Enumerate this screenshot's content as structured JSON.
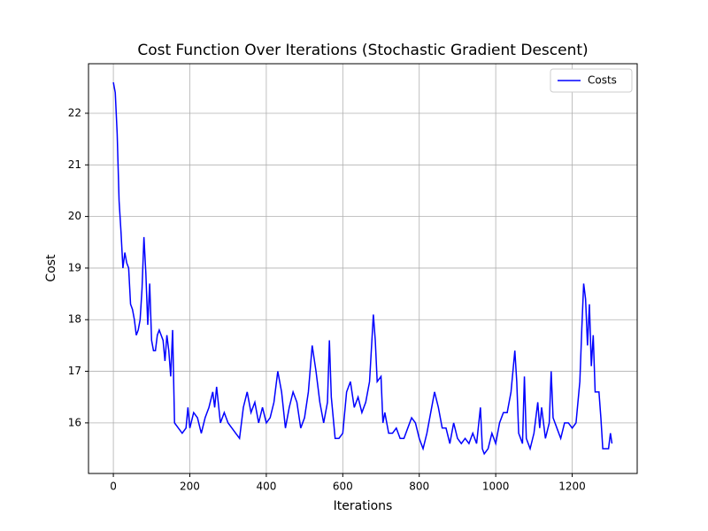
{
  "chart_data": {
    "type": "line",
    "title": "Cost Function Over Iterations (Stochastic Gradient Descent)",
    "xlabel": "Iterations",
    "ylabel": "Cost",
    "x": [
      0,
      5,
      10,
      15,
      20,
      25,
      30,
      35,
      40,
      45,
      50,
      55,
      60,
      65,
      70,
      75,
      80,
      85,
      90,
      95,
      100,
      105,
      110,
      115,
      120,
      125,
      130,
      135,
      140,
      145,
      150,
      155,
      160,
      170,
      180,
      190,
      195,
      200,
      210,
      220,
      230,
      240,
      250,
      260,
      265,
      270,
      280,
      290,
      300,
      310,
      320,
      330,
      340,
      350,
      360,
      370,
      380,
      390,
      400,
      410,
      420,
      430,
      440,
      450,
      460,
      470,
      480,
      490,
      500,
      510,
      520,
      530,
      540,
      550,
      560,
      565,
      570,
      580,
      590,
      600,
      610,
      620,
      630,
      640,
      650,
      660,
      670,
      680,
      685,
      690,
      700,
      705,
      710,
      720,
      730,
      740,
      750,
      760,
      770,
      780,
      790,
      800,
      810,
      820,
      830,
      840,
      850,
      860,
      870,
      880,
      890,
      900,
      910,
      920,
      930,
      940,
      950,
      960,
      965,
      970,
      980,
      990,
      1000,
      1010,
      1020,
      1030,
      1040,
      1050,
      1055,
      1060,
      1070,
      1075,
      1080,
      1090,
      1100,
      1110,
      1115,
      1120,
      1130,
      1140,
      1145,
      1150,
      1160,
      1170,
      1180,
      1190,
      1200,
      1210,
      1220,
      1225,
      1230,
      1235,
      1240,
      1245,
      1250,
      1255,
      1260,
      1270,
      1275,
      1280,
      1290,
      1295,
      1300,
      1304
    ],
    "series": [
      {
        "name": "Costs",
        "color": "#0000ff",
        "values": [
          22.6,
          22.4,
          21.6,
          20.3,
          19.7,
          19.0,
          19.3,
          19.1,
          19.0,
          18.3,
          18.2,
          18.0,
          17.7,
          17.8,
          18.0,
          18.6,
          19.6,
          18.9,
          17.9,
          18.7,
          17.6,
          17.4,
          17.4,
          17.7,
          17.8,
          17.7,
          17.6,
          17.2,
          17.7,
          17.4,
          16.9,
          17.8,
          16.0,
          15.9,
          15.8,
          15.9,
          16.3,
          15.9,
          16.2,
          16.1,
          15.8,
          16.1,
          16.3,
          16.6,
          16.3,
          16.7,
          16.0,
          16.2,
          16.0,
          15.9,
          15.8,
          15.7,
          16.3,
          16.6,
          16.2,
          16.4,
          16.0,
          16.3,
          16.0,
          16.1,
          16.4,
          17.0,
          16.6,
          15.9,
          16.3,
          16.6,
          16.4,
          15.9,
          16.1,
          16.6,
          17.5,
          17.0,
          16.4,
          16.0,
          16.4,
          17.6,
          16.5,
          15.7,
          15.7,
          15.8,
          16.6,
          16.8,
          16.3,
          16.5,
          16.2,
          16.4,
          16.8,
          18.1,
          17.6,
          16.8,
          16.9,
          16.0,
          16.2,
          15.8,
          15.8,
          15.9,
          15.7,
          15.7,
          15.9,
          16.1,
          16.0,
          15.7,
          15.5,
          15.8,
          16.2,
          16.6,
          16.3,
          15.9,
          15.9,
          15.6,
          16.0,
          15.7,
          15.6,
          15.7,
          15.6,
          15.8,
          15.6,
          16.3,
          15.5,
          15.4,
          15.5,
          15.8,
          15.6,
          16.0,
          16.2,
          16.2,
          16.6,
          17.4,
          16.8,
          15.8,
          15.6,
          16.9,
          15.7,
          15.5,
          15.8,
          16.4,
          15.9,
          16.3,
          15.7,
          16.0,
          17.0,
          16.1,
          15.9,
          15.7,
          16.0,
          16.0,
          15.9,
          16.0,
          16.8,
          17.8,
          18.7,
          18.4,
          17.5,
          18.3,
          17.1,
          17.7,
          16.6,
          16.6,
          16.1,
          15.5,
          15.5,
          15.5,
          15.8,
          15.6
        ]
      }
    ],
    "xlim": [
      -65,
      1370
    ],
    "ylim": [
      15.02,
      22.96
    ],
    "xticks": [
      0,
      200,
      400,
      600,
      800,
      1000,
      1200
    ],
    "yticks": [
      16,
      17,
      18,
      19,
      20,
      21,
      22
    ],
    "grid": true,
    "legend": "upper right"
  }
}
